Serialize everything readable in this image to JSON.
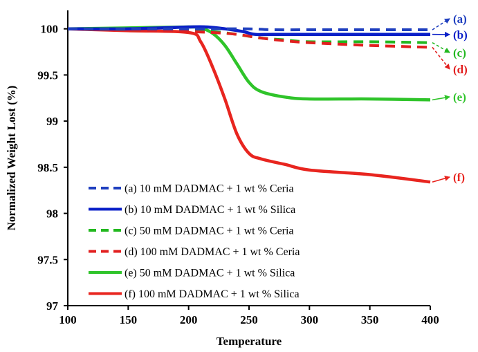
{
  "chart_data": {
    "type": "line",
    "xlabel": "Temperature",
    "ylabel": "Normalized Weight Lost  (%)",
    "xlim": [
      100,
      400
    ],
    "ylim": [
      97,
      100.2
    ],
    "xticks": [
      "100",
      "150",
      "200",
      "250",
      "300",
      "350",
      "400"
    ],
    "yticks": [
      "97",
      "97.5",
      "98",
      "98.5",
      "99",
      "99.5",
      "100"
    ],
    "grid": false,
    "legend_position": "bottom-left (inside plot)",
    "series": [
      {
        "name": "(a) 10 mM DADMAC + 1 wt % Ceria",
        "end_label": "(a)",
        "color": "#1f3fbf",
        "dash": true,
        "x": [
          100,
          150,
          200,
          230,
          250,
          270,
          300,
          350,
          400
        ],
        "y": [
          100.0,
          100.0,
          100.0,
          100.0,
          100.0,
          99.99,
          99.99,
          99.99,
          99.99
        ]
      },
      {
        "name": "(b) 10 mM  DADMAC + 1 wt % Silica",
        "end_label": "(b)",
        "color": "#0a1fc8",
        "dash": false,
        "x": [
          100,
          150,
          200,
          215,
          230,
          245,
          255,
          270,
          300,
          350,
          400
        ],
        "y": [
          100.0,
          100.0,
          100.02,
          100.02,
          100.0,
          99.97,
          99.94,
          99.94,
          99.94,
          99.94,
          99.94
        ]
      },
      {
        "name": "(c) 50 mM  DADMAC +  1 wt % Ceria",
        "end_label": "(c)",
        "color": "#22b81f",
        "dash": true,
        "x": [
          100,
          150,
          200,
          220,
          240,
          260,
          280,
          300,
          350,
          400
        ],
        "y": [
          100.0,
          99.99,
          99.98,
          99.97,
          99.94,
          99.9,
          99.88,
          99.86,
          99.86,
          99.85
        ]
      },
      {
        "name": "(d) 100 mM  DADMAC + 1 wt % Ceria",
        "end_label": "(d)",
        "color": "#e21f1f",
        "dash": true,
        "x": [
          100,
          150,
          200,
          220,
          240,
          260,
          280,
          300,
          350,
          400
        ],
        "y": [
          100.0,
          99.99,
          99.97,
          99.96,
          99.94,
          99.9,
          99.87,
          99.85,
          99.82,
          99.8
        ]
      },
      {
        "name": "(e) 50 mM  DADMAC + 1 wt % Silica",
        "end_label": "(e)",
        "color": "#2fc42a",
        "dash": false,
        "x": [
          100,
          150,
          200,
          210,
          220,
          230,
          240,
          250,
          260,
          280,
          300,
          350,
          400
        ],
        "y": [
          100.0,
          100.01,
          100.02,
          100.01,
          99.95,
          99.82,
          99.62,
          99.42,
          99.32,
          99.26,
          99.24,
          99.24,
          99.23
        ]
      },
      {
        "name": "(f) 100 mM  DADMAC + 1 wt % Silica",
        "end_label": "(f)",
        "color": "#e8251f",
        "dash": false,
        "x": [
          100,
          150,
          200,
          210,
          220,
          230,
          240,
          250,
          260,
          280,
          300,
          350,
          400
        ],
        "y": [
          100.0,
          99.98,
          99.96,
          99.86,
          99.58,
          99.24,
          98.86,
          98.65,
          98.59,
          98.53,
          98.47,
          98.42,
          98.34
        ]
      }
    ]
  }
}
